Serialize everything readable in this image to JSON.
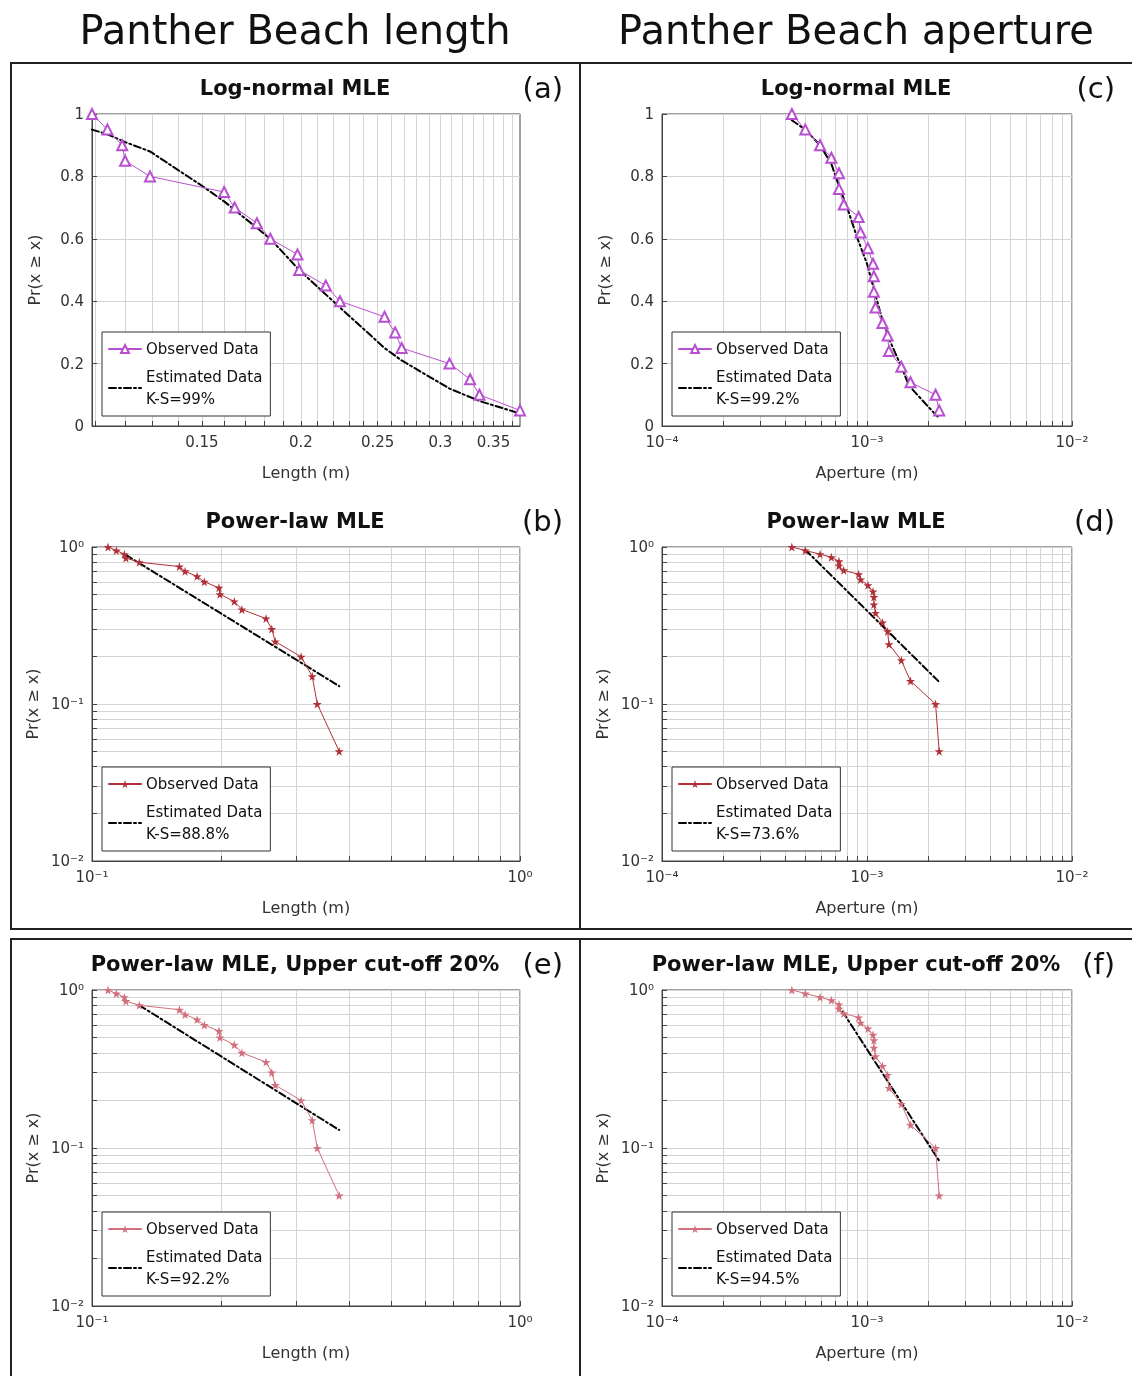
{
  "chart_data": [
    {
      "type": "line",
      "title": "Log-normal MLE",
      "subtitle": "(a)",
      "annotations": [
        "Panther Beach length"
      ],
      "xlabel": "Length (m)",
      "ylabel": "Pr(x ≥ x)",
      "log": "x",
      "grid": true,
      "legend": "bottom left",
      "xlim": [
        0.109,
        0.378
      ],
      "ylim": [
        0,
        1
      ],
      "xticks": [
        {
          "value": 0.11,
          "label": null
        },
        {
          "value": 0.12,
          "label": null
        },
        {
          "value": 0.13,
          "label": null
        },
        {
          "value": 0.14,
          "label": null
        },
        0.15,
        {
          "value": 0.16,
          "label": null
        },
        {
          "value": 0.17,
          "label": null
        },
        {
          "value": 0.18,
          "label": null
        },
        {
          "value": 0.19,
          "label": null
        },
        0.2,
        {
          "value": 0.21,
          "label": null
        },
        {
          "value": 0.22,
          "label": null
        },
        {
          "value": 0.23,
          "label": null
        },
        {
          "value": 0.24,
          "label": null
        },
        0.25,
        {
          "value": 0.26,
          "label": null
        },
        {
          "value": 0.27,
          "label": null
        },
        {
          "value": 0.28,
          "label": null
        },
        {
          "value": 0.29,
          "label": null
        },
        0.3,
        {
          "value": 0.31,
          "label": null
        },
        {
          "value": 0.32,
          "label": null
        },
        {
          "value": 0.33,
          "label": null
        },
        {
          "value": 0.34,
          "label": null
        },
        0.35,
        {
          "value": 0.36,
          "label": null
        },
        {
          "value": 0.37,
          "label": null
        }
      ],
      "yticks": [
        0,
        0.2,
        0.4,
        0.6,
        0.8,
        1
      ],
      "series": [
        {
          "name": "Observed Data",
          "color": "#b84fd0",
          "marker": "triangle",
          "line_style": "solid",
          "x": [
            0.109,
            0.114,
            0.119,
            0.12,
            0.129,
            0.16,
            0.165,
            0.176,
            0.183,
            0.198,
            0.199,
            0.215,
            0.224,
            0.255,
            0.263,
            0.268,
            0.308,
            0.327,
            0.336,
            0.378
          ],
          "values": [
            1,
            0.95,
            0.9,
            0.85,
            0.8,
            0.75,
            0.7,
            0.65,
            0.6,
            0.55,
            0.5,
            0.45,
            0.4,
            0.35,
            0.3,
            0.25,
            0.2,
            0.15,
            0.1,
            0.05
          ]
        },
        {
          "name": "Estimated Data\nK-S=99%",
          "color": "#000000",
          "marker": "none",
          "line_style": "dashed",
          "x": [
            0.109,
            0.114,
            0.12,
            0.129,
            0.15,
            0.16,
            0.183,
            0.199,
            0.224,
            0.255,
            0.268,
            0.308,
            0.336,
            0.378
          ],
          "values": [
            0.95,
            0.935,
            0.91,
            0.88,
            0.77,
            0.72,
            0.6,
            0.5,
            0.38,
            0.25,
            0.21,
            0.12,
            0.08,
            0.04
          ]
        }
      ]
    },
    {
      "type": "line",
      "title": "Log-normal MLE",
      "subtitle": "(c)",
      "annotations": [
        "Panther Beach aperture"
      ],
      "xlabel": "Aperture (m)",
      "ylabel": "Pr(x ≥ x)",
      "log": "x",
      "grid": true,
      "legend": "bottom left",
      "xlim": [
        0.0001,
        0.01
      ],
      "ylim": [
        0,
        1
      ],
      "xticks": [
        {
          "value": 0.0001,
          "label": "10⁻⁴"
        },
        {
          "value": 0.0002,
          "label": null
        },
        {
          "value": 0.0003,
          "label": null
        },
        {
          "value": 0.0004,
          "label": null
        },
        {
          "value": 0.0005,
          "label": null
        },
        {
          "value": 0.0006,
          "label": null
        },
        {
          "value": 0.0007,
          "label": null
        },
        {
          "value": 0.0008,
          "label": null
        },
        {
          "value": 0.0009,
          "label": null
        },
        {
          "value": 0.001,
          "label": "10⁻³"
        },
        {
          "value": 0.002,
          "label": null
        },
        {
          "value": 0.003,
          "label": null
        },
        {
          "value": 0.004,
          "label": null
        },
        {
          "value": 0.005,
          "label": null
        },
        {
          "value": 0.006,
          "label": null
        },
        {
          "value": 0.007,
          "label": null
        },
        {
          "value": 0.008,
          "label": null
        },
        {
          "value": 0.009,
          "label": null
        },
        {
          "value": 0.01,
          "label": "10⁻²"
        }
      ],
      "yticks": [
        0,
        0.2,
        0.4,
        0.6,
        0.8,
        1
      ],
      "series": [
        {
          "name": "Observed Data",
          "color": "#b84fd0",
          "marker": "triangle",
          "line_style": "solid",
          "x": [
            0.00043,
            0.0005,
            0.00059,
            0.00067,
            0.00073,
            0.00073,
            0.00077,
            0.00091,
            0.00093,
            0.00101,
            0.00107,
            0.00108,
            0.00108,
            0.0011,
            0.00119,
            0.00126,
            0.00128,
            0.00147,
            0.00163,
            0.00216,
            0.00225
          ],
          "values": [
            1,
            0.95,
            0.9,
            0.86,
            0.81,
            0.76,
            0.71,
            0.67,
            0.62,
            0.57,
            0.52,
            0.48,
            0.43,
            0.38,
            0.33,
            0.29,
            0.24,
            0.19,
            0.14,
            0.1,
            0.05
          ]
        },
        {
          "name": "Estimated Data\nK-S=99.2%",
          "color": "#000000",
          "marker": "none",
          "line_style": "dashed",
          "x": [
            0.00043,
            0.0005,
            0.00059,
            0.00067,
            0.00073,
            0.0008,
            0.0009,
            0.001,
            0.0011,
            0.0012,
            0.0013,
            0.00147,
            0.0016,
            0.002,
            0.00225
          ],
          "values": [
            0.98,
            0.95,
            0.9,
            0.84,
            0.77,
            0.7,
            0.6,
            0.52,
            0.42,
            0.33,
            0.27,
            0.19,
            0.13,
            0.06,
            0.025
          ]
        }
      ]
    },
    {
      "type": "line",
      "title": "Power-law MLE",
      "subtitle": "(b)",
      "xlabel": "Length (m)",
      "ylabel": "Pr(x ≥ x)",
      "log": "xy",
      "grid": true,
      "legend": "bottom left",
      "xlim": [
        0.1,
        1
      ],
      "ylim": [
        0.01,
        1
      ],
      "xticks": [
        {
          "value": 0.1,
          "label": "10⁻¹"
        },
        {
          "value": 0.2,
          "label": null
        },
        {
          "value": 0.3,
          "label": null
        },
        {
          "value": 0.4,
          "label": null
        },
        {
          "value": 0.5,
          "label": null
        },
        {
          "value": 0.6,
          "label": null
        },
        {
          "value": 0.7,
          "label": null
        },
        {
          "value": 0.8,
          "label": null
        },
        {
          "value": 0.9,
          "label": null
        },
        {
          "value": 1,
          "label": "10⁰"
        }
      ],
      "yticks": [
        {
          "value": 0.01,
          "label": "10⁻²"
        },
        {
          "value": 0.02,
          "label": null
        },
        {
          "value": 0.03,
          "label": null
        },
        {
          "value": 0.04,
          "label": null
        },
        {
          "value": 0.05,
          "label": null
        },
        {
          "value": 0.06,
          "label": null
        },
        {
          "value": 0.07,
          "label": null
        },
        {
          "value": 0.08,
          "label": null
        },
        {
          "value": 0.09,
          "label": null
        },
        {
          "value": 0.1,
          "label": "10⁻¹"
        },
        {
          "value": 0.2,
          "label": null
        },
        {
          "value": 0.3,
          "label": null
        },
        {
          "value": 0.4,
          "label": null
        },
        {
          "value": 0.5,
          "label": null
        },
        {
          "value": 0.6,
          "label": null
        },
        {
          "value": 0.7,
          "label": null
        },
        {
          "value": 0.8,
          "label": null
        },
        {
          "value": 0.9,
          "label": null
        },
        {
          "value": 1,
          "label": "10⁰"
        }
      ],
      "series": [
        {
          "name": "Observed Data",
          "color": "#b03038",
          "marker": "star",
          "line_style": "solid",
          "x": [
            0.109,
            0.114,
            0.119,
            0.12,
            0.129,
            0.16,
            0.165,
            0.176,
            0.183,
            0.198,
            0.199,
            0.215,
            0.224,
            0.255,
            0.263,
            0.268,
            0.308,
            0.327,
            0.336,
            0.378
          ],
          "values": [
            1,
            0.95,
            0.9,
            0.85,
            0.8,
            0.75,
            0.7,
            0.65,
            0.6,
            0.55,
            0.5,
            0.45,
            0.4,
            0.35,
            0.3,
            0.25,
            0.2,
            0.15,
            0.1,
            0.05
          ]
        },
        {
          "name": "Estimated Data\nK-S=88.8%",
          "color": "#000000",
          "marker": "none",
          "line_style": "dashed",
          "x": [
            0.12,
            0.378
          ],
          "values": [
            0.89,
            0.13
          ]
        }
      ]
    },
    {
      "type": "line",
      "title": "Power-law MLE",
      "subtitle": "(d)",
      "xlabel": "Aperture (m)",
      "ylabel": "Pr(x ≥ x)",
      "log": "xy",
      "grid": true,
      "legend": "bottom left",
      "xlim": [
        0.0001,
        0.01
      ],
      "ylim": [
        0.01,
        1
      ],
      "xticks": [
        {
          "value": 0.0001,
          "label": "10⁻⁴"
        },
        {
          "value": 0.0002,
          "label": null
        },
        {
          "value": 0.0003,
          "label": null
        },
        {
          "value": 0.0004,
          "label": null
        },
        {
          "value": 0.0005,
          "label": null
        },
        {
          "value": 0.0006,
          "label": null
        },
        {
          "value": 0.0007,
          "label": null
        },
        {
          "value": 0.0008,
          "label": null
        },
        {
          "value": 0.0009,
          "label": null
        },
        {
          "value": 0.001,
          "label": "10⁻³"
        },
        {
          "value": 0.002,
          "label": null
        },
        {
          "value": 0.003,
          "label": null
        },
        {
          "value": 0.004,
          "label": null
        },
        {
          "value": 0.005,
          "label": null
        },
        {
          "value": 0.006,
          "label": null
        },
        {
          "value": 0.007,
          "label": null
        },
        {
          "value": 0.008,
          "label": null
        },
        {
          "value": 0.009,
          "label": null
        },
        {
          "value": 0.01,
          "label": "10⁻²"
        }
      ],
      "yticks": [
        {
          "value": 0.01,
          "label": "10⁻²"
        },
        {
          "value": 0.02,
          "label": null
        },
        {
          "value": 0.03,
          "label": null
        },
        {
          "value": 0.04,
          "label": null
        },
        {
          "value": 0.05,
          "label": null
        },
        {
          "value": 0.06,
          "label": null
        },
        {
          "value": 0.07,
          "label": null
        },
        {
          "value": 0.08,
          "label": null
        },
        {
          "value": 0.09,
          "label": null
        },
        {
          "value": 0.1,
          "label": "10⁻¹"
        },
        {
          "value": 0.2,
          "label": null
        },
        {
          "value": 0.3,
          "label": null
        },
        {
          "value": 0.4,
          "label": null
        },
        {
          "value": 0.5,
          "label": null
        },
        {
          "value": 0.6,
          "label": null
        },
        {
          "value": 0.7,
          "label": null
        },
        {
          "value": 0.8,
          "label": null
        },
        {
          "value": 0.9,
          "label": null
        },
        {
          "value": 1,
          "label": "10⁰"
        }
      ],
      "series": [
        {
          "name": "Observed Data",
          "color": "#b03038",
          "marker": "star",
          "line_style": "solid",
          "x": [
            0.00043,
            0.0005,
            0.00059,
            0.00067,
            0.00073,
            0.00073,
            0.00077,
            0.00091,
            0.00093,
            0.00101,
            0.00107,
            0.00108,
            0.00108,
            0.0011,
            0.00119,
            0.00126,
            0.00128,
            0.00147,
            0.00163,
            0.00216,
            0.00225
          ],
          "values": [
            1,
            0.95,
            0.9,
            0.86,
            0.81,
            0.76,
            0.71,
            0.67,
            0.62,
            0.57,
            0.52,
            0.48,
            0.43,
            0.38,
            0.33,
            0.29,
            0.24,
            0.19,
            0.14,
            0.1,
            0.05
          ]
        },
        {
          "name": "Estimated Data\nK-S=73.6%",
          "color": "#000000",
          "marker": "none",
          "line_style": "dashed",
          "x": [
            0.0005,
            0.00224
          ],
          "values": [
            0.96,
            0.139
          ]
        }
      ]
    },
    {
      "type": "line",
      "title": "Power-law MLE, Upper cut-off 20%",
      "subtitle": "(e)",
      "xlabel": "Length (m)",
      "ylabel": "Pr(x ≥ x)",
      "log": "xy",
      "grid": true,
      "legend": "bottom left",
      "xlim": [
        0.1,
        1
      ],
      "ylim": [
        0.01,
        1
      ],
      "xticks": [
        {
          "value": 0.1,
          "label": "10⁻¹"
        },
        {
          "value": 0.2,
          "label": null
        },
        {
          "value": 0.3,
          "label": null
        },
        {
          "value": 0.4,
          "label": null
        },
        {
          "value": 0.5,
          "label": null
        },
        {
          "value": 0.6,
          "label": null
        },
        {
          "value": 0.7,
          "label": null
        },
        {
          "value": 0.8,
          "label": null
        },
        {
          "value": 0.9,
          "label": null
        },
        {
          "value": 1,
          "label": "10⁰"
        }
      ],
      "yticks": [
        {
          "value": 0.01,
          "label": "10⁻²"
        },
        {
          "value": 0.02,
          "label": null
        },
        {
          "value": 0.03,
          "label": null
        },
        {
          "value": 0.04,
          "label": null
        },
        {
          "value": 0.05,
          "label": null
        },
        {
          "value": 0.06,
          "label": null
        },
        {
          "value": 0.07,
          "label": null
        },
        {
          "value": 0.08,
          "label": null
        },
        {
          "value": 0.09,
          "label": null
        },
        {
          "value": 0.1,
          "label": "10⁻¹"
        },
        {
          "value": 0.2,
          "label": null
        },
        {
          "value": 0.3,
          "label": null
        },
        {
          "value": 0.4,
          "label": null
        },
        {
          "value": 0.5,
          "label": null
        },
        {
          "value": 0.6,
          "label": null
        },
        {
          "value": 0.7,
          "label": null
        },
        {
          "value": 0.8,
          "label": null
        },
        {
          "value": 0.9,
          "label": null
        },
        {
          "value": 1,
          "label": "10⁰"
        }
      ],
      "series": [
        {
          "name": "Observed Data",
          "color": "#d0707c",
          "marker": "star",
          "line_style": "solid",
          "x": [
            0.109,
            0.114,
            0.119,
            0.12,
            0.129,
            0.16,
            0.165,
            0.176,
            0.183,
            0.198,
            0.199,
            0.215,
            0.224,
            0.255,
            0.263,
            0.268,
            0.308,
            0.327,
            0.336,
            0.378
          ],
          "values": [
            1,
            0.95,
            0.9,
            0.85,
            0.8,
            0.75,
            0.7,
            0.65,
            0.6,
            0.55,
            0.5,
            0.45,
            0.4,
            0.35,
            0.3,
            0.25,
            0.2,
            0.15,
            0.1,
            0.05
          ]
        },
        {
          "name": "Estimated Data\nK-S=92.2%",
          "color": "#000000",
          "marker": "none",
          "line_style": "dashed",
          "x": [
            0.129,
            0.378
          ],
          "values": [
            0.8,
            0.13
          ]
        }
      ]
    },
    {
      "type": "line",
      "title": "Power-law MLE, Upper cut-off 20%",
      "subtitle": "(f)",
      "xlabel": "Aperture (m)",
      "ylabel": "Pr(x ≥ x)",
      "log": "xy",
      "grid": true,
      "legend": "bottom left",
      "xlim": [
        0.0001,
        0.01
      ],
      "ylim": [
        0.01,
        1
      ],
      "xticks": [
        {
          "value": 0.0001,
          "label": "10⁻⁴"
        },
        {
          "value": 0.0002,
          "label": null
        },
        {
          "value": 0.0003,
          "label": null
        },
        {
          "value": 0.0004,
          "label": null
        },
        {
          "value": 0.0005,
          "label": null
        },
        {
          "value": 0.0006,
          "label": null
        },
        {
          "value": 0.0007,
          "label": null
        },
        {
          "value": 0.0008,
          "label": null
        },
        {
          "value": 0.0009,
          "label": null
        },
        {
          "value": 0.001,
          "label": "10⁻³"
        },
        {
          "value": 0.002,
          "label": null
        },
        {
          "value": 0.003,
          "label": null
        },
        {
          "value": 0.004,
          "label": null
        },
        {
          "value": 0.005,
          "label": null
        },
        {
          "value": 0.006,
          "label": null
        },
        {
          "value": 0.007,
          "label": null
        },
        {
          "value": 0.008,
          "label": null
        },
        {
          "value": 0.009,
          "label": null
        },
        {
          "value": 0.01,
          "label": "10⁻²"
        }
      ],
      "yticks": [
        {
          "value": 0.01,
          "label": "10⁻²"
        },
        {
          "value": 0.02,
          "label": null
        },
        {
          "value": 0.03,
          "label": null
        },
        {
          "value": 0.04,
          "label": null
        },
        {
          "value": 0.05,
          "label": null
        },
        {
          "value": 0.06,
          "label": null
        },
        {
          "value": 0.07,
          "label": null
        },
        {
          "value": 0.08,
          "label": null
        },
        {
          "value": 0.09,
          "label": null
        },
        {
          "value": 0.1,
          "label": "10⁻¹"
        },
        {
          "value": 0.2,
          "label": null
        },
        {
          "value": 0.3,
          "label": null
        },
        {
          "value": 0.4,
          "label": null
        },
        {
          "value": 0.5,
          "label": null
        },
        {
          "value": 0.6,
          "label": null
        },
        {
          "value": 0.7,
          "label": null
        },
        {
          "value": 0.8,
          "label": null
        },
        {
          "value": 0.9,
          "label": null
        },
        {
          "value": 1,
          "label": "10⁰"
        }
      ],
      "series": [
        {
          "name": "Observed Data",
          "color": "#d0707c",
          "marker": "star",
          "line_style": "solid",
          "x": [
            0.00043,
            0.0005,
            0.00059,
            0.00067,
            0.00073,
            0.00073,
            0.00077,
            0.00091,
            0.00093,
            0.00101,
            0.00107,
            0.00108,
            0.00108,
            0.0011,
            0.00119,
            0.00126,
            0.00128,
            0.00147,
            0.00163,
            0.00216,
            0.00225
          ],
          "values": [
            1,
            0.95,
            0.9,
            0.86,
            0.81,
            0.76,
            0.71,
            0.67,
            0.62,
            0.57,
            0.52,
            0.48,
            0.43,
            0.38,
            0.33,
            0.29,
            0.24,
            0.19,
            0.14,
            0.1,
            0.05
          ]
        },
        {
          "name": "Estimated Data\nK-S=94.5%",
          "color": "#000000",
          "marker": "none",
          "line_style": "dashed",
          "x": [
            0.00076,
            0.00225
          ],
          "values": [
            0.73,
            0.083
          ]
        }
      ]
    }
  ]
}
